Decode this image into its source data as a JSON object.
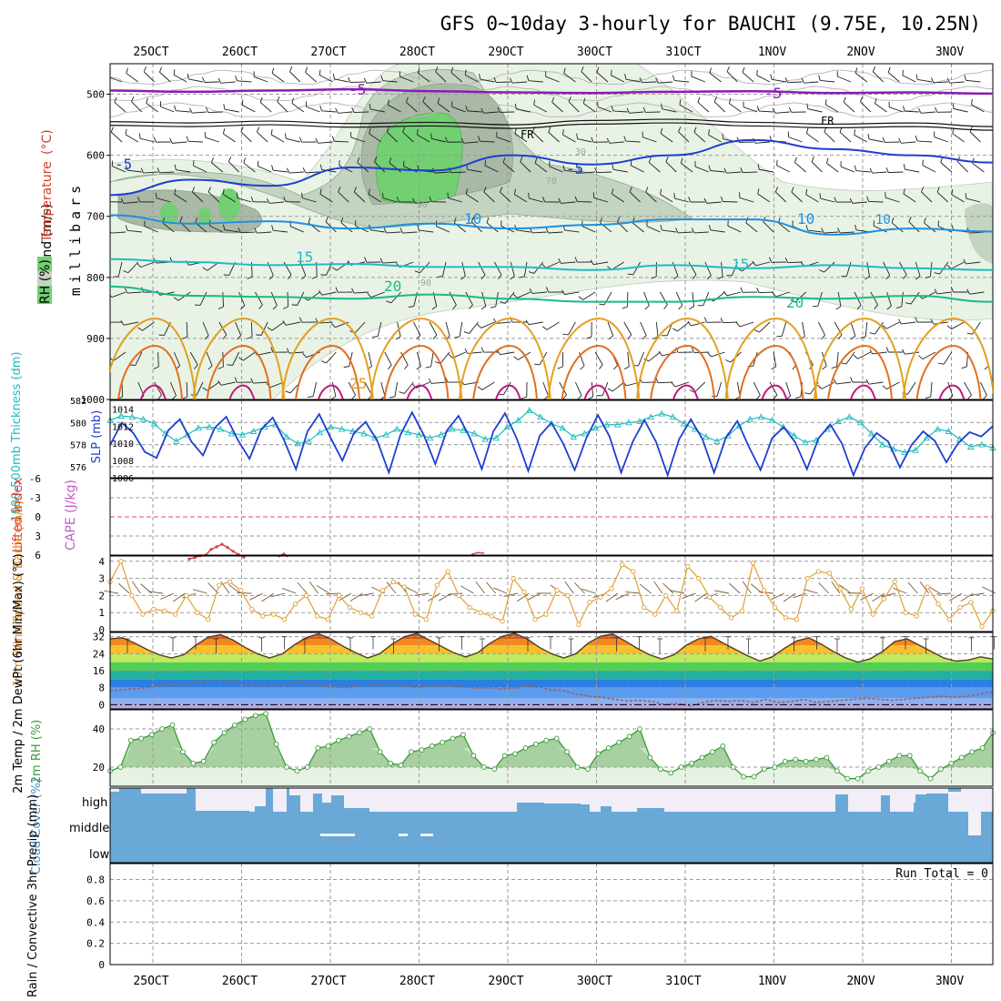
{
  "title": "GFS 0~10day 3-hourly for BAUCHI (9.75E, 10.25N)",
  "colors": {
    "rh_light": "#e8f3e6",
    "rh_mid": "#c3d4c0",
    "rh_dark": "#a9b9a6",
    "rh_green": "#72cf72",
    "iso_purple": "#8a1bb0",
    "iso_black": "#111111",
    "iso_blue": "#1e3fcf",
    "iso_lightblue": "#1f8fe0",
    "iso_teal": "#1fbcc0",
    "iso_seagreen": "#19b98c",
    "iso_orange": "#e3a020",
    "iso_darkorange": "#e07020",
    "iso_magenta": "#c3177f",
    "slp": "#1e3fcf",
    "thickness": "#1fbcc0",
    "lifted_index": "#dd4040",
    "wind10": "#e0a030",
    "cloud": "#6aa8d8",
    "cloud_bg": "#f1eef8",
    "rh2m": "#3a9a3a",
    "temp_band_orange": "#f08a20",
    "dewpt": "#a06060"
  },
  "chart_data": [
    {
      "type": "contour",
      "panel": "upper-air",
      "ylabel_parts": [
        "Wind",
        " (m/s)",
        "Temperature",
        " (°C)",
        "RH (%)"
      ],
      "yunit_label": "millibars",
      "x": [
        "25OCT",
        "26OCT",
        "27OCT",
        "28OCT",
        "29OCT",
        "30OCT",
        "31OCT",
        "1NOV",
        "2NOV",
        "3NOV"
      ],
      "yticks": [
        500,
        600,
        700,
        800,
        900,
        1000
      ],
      "ylim": [
        1000,
        450
      ],
      "isotherm_labels": [
        "-5",
        "-5",
        "-5",
        "-5",
        "FR",
        "FR",
        "10",
        "10",
        "10",
        "15",
        "15",
        "20",
        "20",
        "25"
      ],
      "isotherms": [
        {
          "label": "-5",
          "level": [
            494,
            496,
            494,
            492,
            495,
            497,
            498,
            496,
            495,
            498,
            497,
            499
          ]
        },
        {
          "label": "FR",
          "level": [
            548,
            550,
            547,
            551,
            549,
            553,
            546,
            544,
            549,
            552,
            550,
            556
          ]
        },
        {
          "label": "-5",
          "level": [
            665,
            640,
            650,
            620,
            625,
            600,
            615,
            600,
            575,
            590,
            600,
            612
          ]
        },
        {
          "label": "10",
          "level": [
            698,
            712,
            708,
            720,
            712,
            720,
            714,
            705,
            705,
            730,
            720,
            725
          ]
        },
        {
          "label": "15",
          "level": [
            770,
            775,
            780,
            778,
            783,
            783,
            788,
            780,
            785,
            780,
            785,
            788
          ]
        },
        {
          "label": "20",
          "level": [
            815,
            830,
            832,
            835,
            828,
            835,
            840,
            840,
            832,
            835,
            830,
            840
          ]
        }
      ],
      "rh_levels": [
        "30",
        "50",
        "70",
        "90"
      ]
    },
    {
      "type": "line",
      "panel": "slp-thickness",
      "ylabel_left": "1000-500mb Thickness (dm)",
      "ylabel_right": "SLP (mb)",
      "yticks_left": [
        576,
        578,
        580,
        582
      ],
      "yticks_right": [
        1006,
        1008,
        1010,
        1012,
        1014
      ],
      "series": [
        {
          "name": "SLP (mb)",
          "values": [
            1009.8,
            1012.4,
            1011.2,
            1009.0,
            1008.3,
            1011.5,
            1012.8,
            1010.2,
            1008.6,
            1011.8,
            1013.1,
            1010.4,
            1008.2,
            1011.6,
            1013.0,
            1010.3,
            1007.0,
            1011.4,
            1013.4,
            1010.6,
            1008.0,
            1011.2,
            1012.5,
            1010.3,
            1006.6,
            1011.0,
            1013.6,
            1011.0,
            1007.6,
            1011.5,
            1013.2,
            1010.6,
            1007.0,
            1011.4,
            1013.5,
            1010.6,
            1006.8,
            1010.9,
            1012.4,
            1010.0,
            1006.9,
            1010.6,
            1013.3,
            1010.8,
            1006.6,
            1010.2,
            1012.7,
            1010.2,
            1006.3,
            1010.5,
            1012.8,
            1010.5,
            1006.6,
            1010.6,
            1012.6,
            1009.6,
            1006.9,
            1010.6,
            1011.9,
            1010.1,
            1007.0,
            1010.6,
            1012.2,
            1010.0,
            1006.3,
            1009.5,
            1011.2,
            1010.2,
            1007.2,
            1009.8,
            1011.4,
            1010.3,
            1007.8,
            1010.0,
            1011.3,
            1010.8,
            1012.0
          ]
        },
        {
          "name": "Thickness (dm)",
          "values": [
            580.2,
            580.6,
            580.5,
            580.3,
            579.9,
            579.0,
            578.3,
            578.9,
            579.5,
            579.6,
            579.4,
            579.0,
            578.9,
            579.2,
            579.6,
            579.8,
            578.7,
            578.1,
            578.3,
            579.1,
            579.6,
            579.4,
            579.2,
            579.0,
            578.6,
            578.9,
            579.4,
            579.1,
            578.9,
            578.6,
            578.9,
            579.4,
            579.3,
            579.0,
            578.5,
            578.6,
            579.6,
            580.2,
            581.1,
            580.5,
            579.9,
            579.5,
            578.7,
            579.0,
            579.5,
            579.8,
            579.8,
            580.0,
            580.1,
            580.5,
            580.8,
            580.5,
            579.9,
            579.4,
            578.7,
            578.3,
            578.8,
            579.7,
            580.3,
            580.5,
            580.2,
            579.6,
            578.8,
            578.2,
            578.4,
            579.4,
            580.1,
            580.5,
            580.0,
            579.0,
            578.0,
            577.6,
            577.3,
            577.5,
            578.6,
            579.4,
            579.2,
            578.5,
            577.8,
            578.0,
            577.7
          ]
        }
      ]
    },
    {
      "type": "line",
      "panel": "lifted-index",
      "ylabel_left": "Lifted Index",
      "ylabel_right": "CAPE (J/kg)",
      "yticks": [
        "-6",
        "-3",
        "0",
        "3",
        "6"
      ],
      "ylim": [
        -6,
        6
      ],
      "series": [
        {
          "name": "Lifted Index",
          "values": [
            6.6,
            6.4,
            6.1,
            6.0,
            5.1,
            4.7,
            4.3,
            4.8,
            5.4,
            5.9,
            6.3
          ]
        },
        {
          "name": "Lifted Index late",
          "values": [
            5.9,
            5.6,
            5.7
          ]
        }
      ]
    },
    {
      "type": "line",
      "panel": "wind10m",
      "ylabel": "10m Wind Speed & Barbs (m/s)",
      "yticks": [
        0,
        1,
        2,
        3,
        4
      ],
      "ylim": [
        0,
        4.2
      ],
      "series": [
        {
          "name": "10m Wind Speed (m/s)",
          "values": [
            2.8,
            4.0,
            2.0,
            0.9,
            1.2,
            1.1,
            0.9,
            2.0,
            1.0,
            0.6,
            2.6,
            2.8,
            2.3,
            1.2,
            0.8,
            0.9,
            0.6,
            1.5,
            2.0,
            0.8,
            0.6,
            2.0,
            1.3,
            1.0,
            0.8,
            2.3,
            2.8,
            2.5,
            0.9,
            0.6,
            2.6,
            3.4,
            2.0,
            1.3,
            1.0,
            0.8,
            0.5,
            3.0,
            2.2,
            0.6,
            0.9,
            2.3,
            2.0,
            0.3,
            1.6,
            1.9,
            2.4,
            3.8,
            3.4,
            1.3,
            0.9,
            2.0,
            1.1,
            3.7,
            3.0,
            1.9,
            1.3,
            0.7,
            1.1,
            3.9,
            2.3,
            1.3,
            0.7,
            0.6,
            3.0,
            3.4,
            3.3,
            2.4,
            1.2,
            2.4,
            0.9,
            1.8,
            2.8,
            1.0,
            0.8,
            2.5,
            1.5,
            0.6,
            1.3,
            1.6,
            0.2,
            1.1
          ]
        }
      ]
    },
    {
      "type": "area",
      "panel": "2m-temp",
      "ylabel": "2m Temp / 2m DewPt (6hr Min/Max) (°C)",
      "yticks": [
        0,
        8,
        16,
        24,
        32
      ],
      "ylim": [
        -2,
        34
      ],
      "series": [
        {
          "name": "2m Temp (°C)",
          "values": [
            31,
            31.5,
            29,
            26,
            23.5,
            22,
            23.5,
            28,
            31.8,
            33,
            30.5,
            27,
            24,
            22,
            23.8,
            28,
            31.6,
            33.4,
            31,
            27.5,
            24.5,
            22,
            24,
            28.5,
            32,
            33.5,
            30.5,
            27.5,
            24.5,
            22.5,
            24.5,
            29,
            32.2,
            33.6,
            31,
            27,
            24,
            22,
            24,
            29,
            32.2,
            33.3,
            30,
            26.5,
            23.5,
            21.5,
            23.5,
            28,
            31,
            32.2,
            29,
            26,
            23,
            20.5,
            22.5,
            26.5,
            30,
            31.5,
            28.5,
            25,
            22,
            20,
            21.6,
            25,
            29.7,
            31,
            28,
            25,
            22,
            20.5,
            21,
            22.5,
            21.5
          ]
        },
        {
          "name": "2m DewPt (°C)",
          "values": [
            6.5,
            7,
            7.5,
            8,
            9,
            9.8,
            9.5,
            10.5,
            10.8,
            11.2,
            10.2,
            9.5,
            9,
            8.8,
            9.5,
            10.5,
            9.5,
            8.5,
            8.2,
            8,
            9,
            9.5,
            10,
            9.2,
            8.2,
            8.5,
            9,
            8.5,
            8.2,
            7.8,
            8,
            7.5,
            7.8,
            8.5,
            8.2,
            7,
            6.5,
            5,
            4,
            3.5,
            2.5,
            1.8,
            2,
            1.5,
            0,
            0.5,
            -0.5,
            1,
            2,
            1.5,
            2,
            1,
            2.5,
            1,
            1.5,
            2.5,
            1,
            1.5,
            2,
            2.5,
            3,
            2.5,
            2,
            2.5,
            3,
            3.5,
            4,
            3.5,
            4,
            5,
            6
          ]
        }
      ]
    },
    {
      "type": "area",
      "panel": "2m-rh",
      "ylabel": "2m RH (%)",
      "yticks": [
        20,
        40
      ],
      "ylim": [
        10,
        50
      ],
      "series": [
        {
          "name": "2m RH (%)",
          "values": [
            18,
            20,
            34,
            35,
            37,
            40,
            42,
            28,
            22,
            23,
            33,
            38,
            42,
            45,
            47,
            48,
            32,
            20,
            18,
            20,
            30,
            31,
            34,
            36,
            38,
            40,
            28,
            22,
            21,
            28,
            29,
            31,
            33,
            35,
            37,
            26,
            20,
            19,
            26,
            27,
            30,
            32,
            34,
            35,
            28,
            20,
            19,
            27,
            30,
            33,
            36,
            40,
            25,
            19,
            17,
            20,
            22,
            25,
            28,
            31,
            20,
            15,
            15,
            19,
            20,
            23,
            24,
            23,
            24,
            25,
            18,
            14,
            14,
            18,
            20,
            23,
            26,
            26,
            18,
            14,
            19,
            22,
            25,
            28,
            30,
            38
          ]
        }
      ]
    },
    {
      "type": "bar",
      "panel": "cloud-cover",
      "ylabel": "Cloud Cover (%)",
      "levels": [
        "high",
        "middle",
        "low"
      ]
    },
    {
      "type": "bar",
      "panel": "precip",
      "ylabel": "Total / Rain / Convective 3hr Precip (mm)",
      "yticks": [
        "0",
        "0.2",
        "0.4",
        "0.6",
        "0.8"
      ],
      "ylim": [
        0,
        0.95
      ],
      "run_total": "Run Total = 0",
      "values": []
    }
  ]
}
